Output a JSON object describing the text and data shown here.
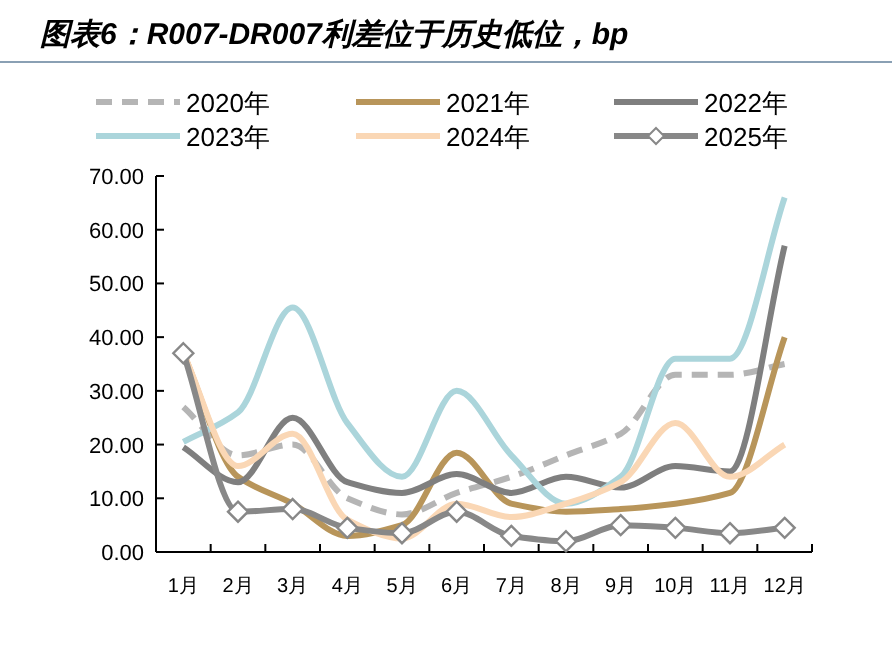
{
  "chart_data": {
    "type": "line",
    "title": "图表6：R007-DR007利差位于历史低位，bp",
    "categories": [
      "1月",
      "2月",
      "3月",
      "4月",
      "5月",
      "6月",
      "7月",
      "8月",
      "9月",
      "10月",
      "11月",
      "12月"
    ],
    "series": [
      {
        "name": "2020年",
        "color": "#b5b5b5",
        "line_style": "dashed",
        "values": [
          27,
          18,
          20,
          10,
          7,
          11,
          14,
          18,
          22,
          33,
          33,
          35
        ]
      },
      {
        "name": "2021年",
        "color": "#b8955a",
        "values": [
          37,
          14,
          9,
          3,
          5,
          18.5,
          9,
          7.5,
          8,
          9,
          11,
          40
        ]
      },
      {
        "name": "2022年",
        "color": "#7f7f7f",
        "values": [
          19.5,
          13,
          25,
          13,
          11,
          14.5,
          11,
          14,
          12,
          16,
          15,
          57
        ]
      },
      {
        "name": "2023年",
        "color": "#abd5db",
        "values": [
          20.5,
          26,
          45.5,
          24,
          14,
          30,
          18,
          9,
          14,
          36,
          36,
          66
        ]
      },
      {
        "name": "2024年",
        "color": "#fad7b5",
        "values": [
          37,
          16,
          22,
          6,
          2.5,
          9,
          6.5,
          9,
          13,
          24,
          14,
          20
        ]
      },
      {
        "name": "2025年",
        "color": "#888888",
        "marker": "diamond",
        "values": [
          37,
          7.5,
          8,
          4.5,
          3.5,
          7.5,
          3,
          2,
          5,
          4.5,
          3.5,
          4.5
        ]
      }
    ],
    "ylim": [
      0,
      70
    ],
    "yticks": [
      {
        "value": 0,
        "label": "0.00"
      },
      {
        "value": 10,
        "label": "10.00"
      },
      {
        "value": 20,
        "label": "20.00"
      },
      {
        "value": 30,
        "label": "30.00"
      },
      {
        "value": 40,
        "label": "40.00"
      },
      {
        "value": 50,
        "label": "50.00"
      },
      {
        "value": 60,
        "label": "60.00"
      },
      {
        "value": 70,
        "label": "70.00"
      }
    ],
    "grid": false,
    "legend": "top"
  }
}
